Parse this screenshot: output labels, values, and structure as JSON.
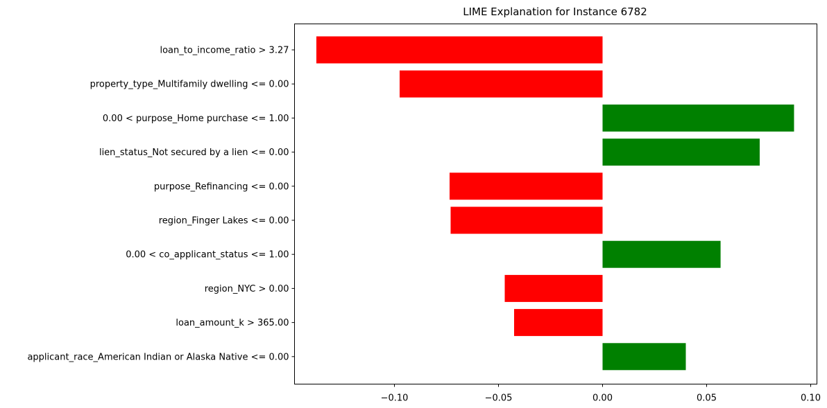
{
  "chart_data": {
    "type": "bar",
    "orientation": "horizontal",
    "title": "LIME Explanation for Instance 6782",
    "xlabel": "",
    "ylabel": "",
    "categories": [
      "loan_to_income_ratio > 3.27",
      "property_type_Multifamily dwelling <= 0.00",
      "0.00 < purpose_Home purchase <= 1.00",
      "lien_status_Not secured by a lien <= 0.00",
      "purpose_Refinancing <= 0.00",
      "region_Finger Lakes <= 0.00",
      "0.00 < co_applicant_status <= 1.00",
      "region_NYC > 0.00",
      "loan_amount_k > 365.00",
      "applicant_race_American Indian or Alaska Native <= 0.00"
    ],
    "values": [
      -0.1375,
      -0.0975,
      0.092,
      0.0755,
      -0.0735,
      -0.073,
      0.0567,
      -0.047,
      -0.0425,
      0.04
    ],
    "xlim": [
      -0.148,
      0.103
    ],
    "xticks": [
      -0.1,
      -0.05,
      0.0,
      0.05,
      0.1
    ],
    "xtick_labels": [
      "−0.10",
      "−0.05",
      "0.00",
      "0.05",
      "0.10"
    ],
    "colors": {
      "positive": "#008000",
      "negative": "#ff0000"
    },
    "grid": false,
    "legend": "none"
  }
}
